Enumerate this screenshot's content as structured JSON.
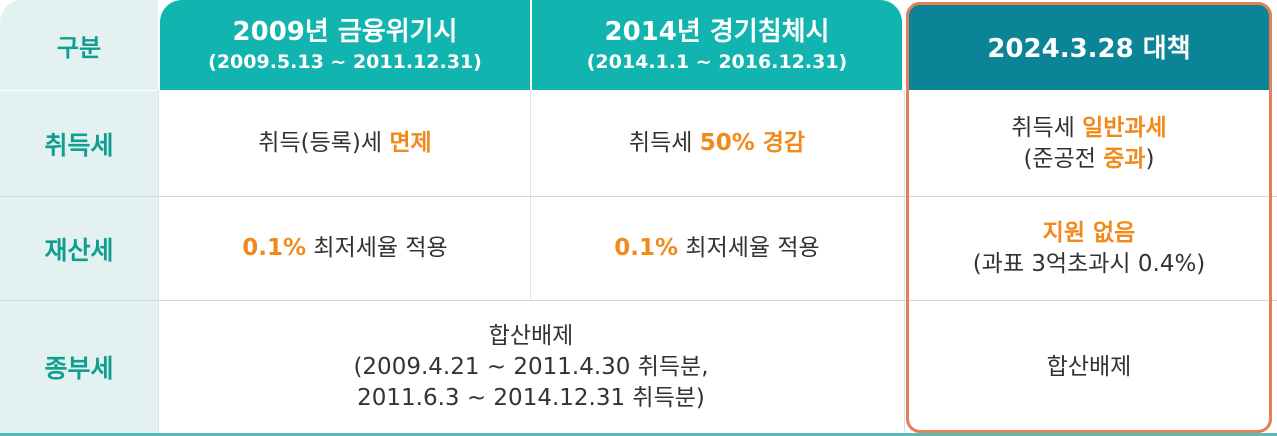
{
  "header": {
    "label": "구분",
    "col1": {
      "title": "2009년 금융위기시",
      "period": "(2009.5.13 ~ 2011.12.31)"
    },
    "col2": {
      "title": "2014년 경기침체시",
      "period": "(2014.1.1 ~ 2016.12.31)"
    },
    "col3": {
      "title": "2024.3.28 대책"
    }
  },
  "rows": [
    {
      "label": "취득세",
      "col1": {
        "pre": "취득(등록)세 ",
        "hl": "면제"
      },
      "col2": {
        "pre": "취득세 ",
        "hl": "50% 경감"
      },
      "col3": {
        "line1_pre": "취득세 ",
        "line1_hl": "일반과세",
        "line2_pre": "(준공전 ",
        "line2_hl": "중과",
        "line2_post": ")"
      }
    },
    {
      "label": "재산세",
      "col1": {
        "hl": "0.1%",
        "post": " 최저세율 적용"
      },
      "col2": {
        "hl": "0.1%",
        "post": " 최저세율 적용"
      },
      "col3": {
        "line1_hl": "지원 없음",
        "line2": "(과표 3억초과시 0.4%)"
      }
    },
    {
      "label": "종부세",
      "merged": {
        "line1": "합산배제",
        "line2": "(2009.4.21 ~ 2011.4.30 취득분,",
        "line3": "2011.6.3 ~ 2014.12.31 취득분)"
      },
      "col3": "합산배제"
    }
  ],
  "colors": {
    "teal": "#12b4b0",
    "dark_teal": "#0b8498",
    "label_bg": "#e3f2f1",
    "label_text": "#0f9e91",
    "highlight": "#f28a1b",
    "frame": "#e77e56"
  }
}
